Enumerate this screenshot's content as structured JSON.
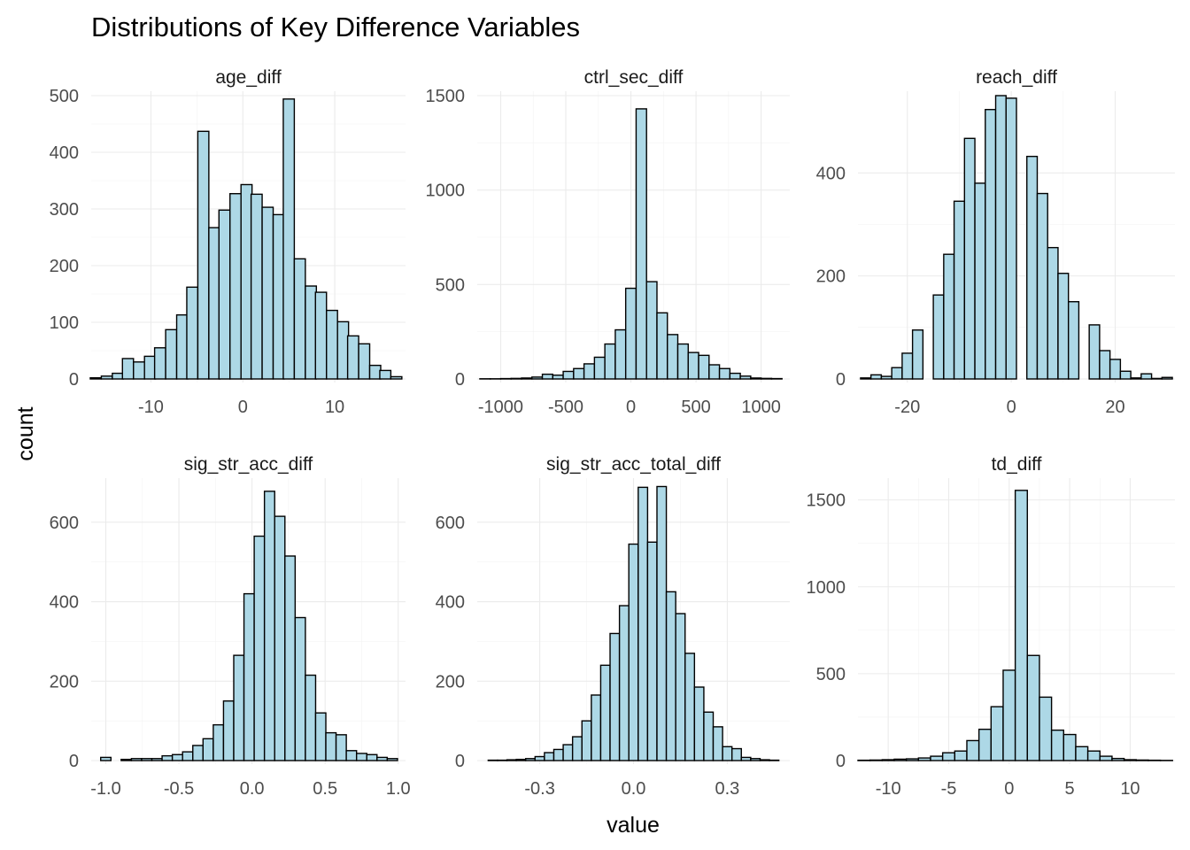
{
  "colors": {
    "bar_fill": "#add8e6",
    "bar_outline": "#000000",
    "grid": "#ebebeb"
  },
  "chart_data": {
    "type": "bar",
    "title": "Distributions of Key Difference Variables",
    "xlabel": "value",
    "ylabel": "count",
    "grid": true,
    "legend": "none",
    "panels": [
      {
        "name": "age_diff",
        "xlim": [
          -16.5,
          17.7
        ],
        "ylim": [
          0,
          500
        ],
        "xticks": [
          -10,
          0,
          10
        ],
        "xtick_labels": [
          "-10",
          "0",
          "10"
        ],
        "yticks": [
          0,
          100,
          200,
          300,
          400,
          500
        ],
        "ytick_labels": [
          "0",
          "100",
          "200",
          "300",
          "400",
          "500"
        ],
        "x": [
          -16.0,
          -14.8,
          -13.6,
          -12.5,
          -11.3,
          -10.1,
          -9.0,
          -7.8,
          -6.6,
          -5.5,
          -4.3,
          -3.1,
          -2.0,
          -0.8,
          0.4,
          1.5,
          2.7,
          3.9,
          5.0,
          6.2,
          7.4,
          8.5,
          9.7,
          10.9,
          12.0,
          13.2,
          14.4,
          15.5,
          16.7
        ],
        "values": [
          2,
          5,
          10,
          36,
          30,
          40,
          55,
          87,
          113,
          162,
          437,
          267,
          298,
          327,
          343,
          326,
          303,
          290,
          494,
          212,
          164,
          153,
          121,
          101,
          76,
          62,
          24,
          15,
          4
        ]
      },
      {
        "name": "ctrl_sec_diff",
        "xlim": [
          -1180,
          1220
        ],
        "ylim": [
          0,
          1500
        ],
        "xticks": [
          -1000,
          -500,
          0,
          500,
          1000
        ],
        "xtick_labels": [
          "-1000",
          "-500",
          "0",
          "500",
          "1000"
        ],
        "yticks": [
          0,
          500,
          1000,
          1500
        ],
        "ytick_labels": [
          "0",
          "500",
          "1000",
          "1500"
        ],
        "x": [
          -1120,
          -1040,
          -960,
          -880,
          -800,
          -720,
          -640,
          -560,
          -480,
          -400,
          -320,
          -240,
          -160,
          -80,
          0,
          80,
          160,
          240,
          320,
          400,
          480,
          560,
          640,
          720,
          800,
          880,
          960,
          1040,
          1120
        ],
        "values": [
          1,
          1,
          2,
          3,
          5,
          10,
          25,
          20,
          40,
          55,
          80,
          115,
          185,
          260,
          480,
          1430,
          515,
          350,
          235,
          185,
          140,
          125,
          75,
          55,
          30,
          15,
          5,
          3,
          2
        ]
      },
      {
        "name": "reach_diff",
        "xlim": [
          -29.5,
          31.5
        ],
        "ylim": [
          0,
          550
        ],
        "xticks": [
          -20,
          0,
          20
        ],
        "xtick_labels": [
          "-20",
          "0",
          "20"
        ],
        "yticks": [
          0,
          200,
          400
        ],
        "ytick_labels": [
          "0",
          "200",
          "400"
        ],
        "x": [
          -28.0,
          -26.0,
          -24.0,
          -22.0,
          -20.0,
          -18.0,
          -16.0,
          -14.0,
          -12.0,
          -10.0,
          -8.0,
          -6.0,
          -4.0,
          -2.0,
          0.0,
          2.0,
          4.0,
          6.0,
          8.0,
          10.0,
          12.0,
          14.0,
          16.0,
          18.0,
          20.0,
          22.0,
          24.0,
          26.0,
          28.0,
          30.0
        ],
        "values": [
          2,
          8,
          5,
          22,
          50,
          95,
          0,
          163,
          242,
          345,
          467,
          380,
          523,
          550,
          545,
          0,
          432,
          360,
          255,
          205,
          150,
          0,
          105,
          55,
          38,
          15,
          2,
          10,
          1,
          3
        ]
      },
      {
        "name": "sig_str_acc_diff",
        "xlim": [
          -1.1,
          1.05
        ],
        "ylim": [
          0,
          700
        ],
        "xticks": [
          -1.0,
          -0.5,
          0.0,
          0.5,
          1.0
        ],
        "xtick_labels": [
          "-1.0",
          "-0.5",
          "0.0",
          "0.5",
          "1.0"
        ],
        "yticks": [
          0,
          200,
          400,
          600
        ],
        "ytick_labels": [
          "0",
          "200",
          "400",
          "600"
        ],
        "x": [
          -1.0,
          -0.93,
          -0.86,
          -0.79,
          -0.72,
          -0.65,
          -0.58,
          -0.51,
          -0.44,
          -0.37,
          -0.3,
          -0.23,
          -0.16,
          -0.09,
          -0.02,
          0.05,
          0.12,
          0.19,
          0.26,
          0.33,
          0.4,
          0.47,
          0.54,
          0.61,
          0.68,
          0.75,
          0.82,
          0.89,
          0.96
        ],
        "values": [
          8,
          0,
          3,
          5,
          5,
          5,
          12,
          15,
          22,
          38,
          55,
          90,
          150,
          265,
          420,
          565,
          678,
          615,
          515,
          360,
          215,
          120,
          70,
          65,
          25,
          18,
          15,
          8,
          5
        ]
      },
      {
        "name": "sig_str_acc_total_diff",
        "xlim": [
          -0.5,
          0.5
        ],
        "ylim": [
          0,
          700
        ],
        "xticks": [
          -0.3,
          0.0,
          0.3
        ],
        "xtick_labels": [
          "-0.3",
          "0.0",
          "0.3"
        ],
        "yticks": [
          0,
          200,
          400,
          600
        ],
        "ytick_labels": [
          "0",
          "200",
          "400",
          "600"
        ],
        "x": [
          -0.45,
          -0.42,
          -0.39,
          -0.36,
          -0.33,
          -0.3,
          -0.27,
          -0.24,
          -0.21,
          -0.18,
          -0.15,
          -0.12,
          -0.09,
          -0.06,
          -0.03,
          0.0,
          0.03,
          0.06,
          0.09,
          0.12,
          0.15,
          0.18,
          0.21,
          0.24,
          0.27,
          0.3,
          0.33,
          0.36,
          0.39,
          0.42,
          0.45
        ],
        "values": [
          1,
          1,
          2,
          3,
          5,
          10,
          20,
          28,
          40,
          60,
          100,
          165,
          240,
          320,
          390,
          545,
          688,
          550,
          690,
          425,
          370,
          270,
          185,
          122,
          85,
          35,
          30,
          8,
          5,
          2,
          1
        ]
      },
      {
        "name": "td_diff",
        "xlim": [
          -12.5,
          13.7
        ],
        "ylim": [
          0,
          1600
        ],
        "xticks": [
          -10,
          -5,
          0,
          5,
          10
        ],
        "xtick_labels": [
          "-10",
          "-5",
          "0",
          "5",
          "10"
        ],
        "yticks": [
          0,
          500,
          1000,
          1500
        ],
        "ytick_labels": [
          "0",
          "500",
          "1000",
          "1500"
        ],
        "x": [
          -12.0,
          -11.0,
          -10.0,
          -9.0,
          -8.0,
          -7.0,
          -6.0,
          -5.0,
          -4.0,
          -3.0,
          -2.0,
          -1.0,
          0.0,
          1.0,
          2.0,
          3.0,
          4.0,
          5.0,
          6.0,
          7.0,
          8.0,
          9.0,
          10.0,
          11.0,
          12.0,
          13.0
        ],
        "values": [
          2,
          3,
          5,
          8,
          10,
          15,
          25,
          45,
          55,
          115,
          180,
          310,
          520,
          1555,
          605,
          365,
          175,
          150,
          80,
          55,
          25,
          12,
          5,
          3,
          2,
          1
        ]
      }
    ]
  }
}
